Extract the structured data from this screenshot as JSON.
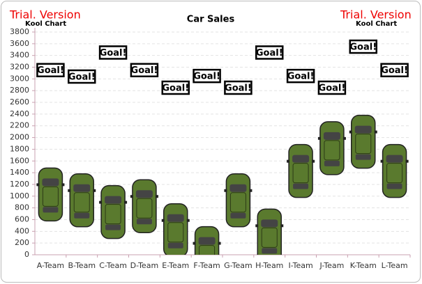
{
  "chart_data": {
    "type": "pictograph",
    "title": "Car Sales",
    "watermarks": [
      "Trial. Version",
      "Trial. Version"
    ],
    "brands": [
      "Kool Chart",
      "Kool Chart"
    ],
    "categories": [
      "A-Team",
      "B-Team",
      "C-Team",
      "D-Team",
      "E-Team",
      "F-Team",
      "G-Team",
      "H-Team",
      "I-Team",
      "J-Team",
      "K-Team",
      "L-Team"
    ],
    "values": [
      1480,
      1380,
      1180,
      1280,
      870,
      480,
      1380,
      780,
      1880,
      2270,
      2380,
      1880
    ],
    "goals": [
      3150,
      3040,
      3450,
      3150,
      2850,
      3050,
      2850,
      3450,
      3050,
      2850,
      3550,
      3150
    ],
    "goal_label": "Goal!",
    "color": "#5a7a2e",
    "ylim": [
      0,
      3800
    ],
    "yticks": [
      0,
      200,
      400,
      600,
      800,
      1000,
      1200,
      1400,
      1600,
      1800,
      2000,
      2200,
      2400,
      2600,
      2800,
      3000,
      3200,
      3400,
      3600,
      3800
    ],
    "grid": true
  }
}
